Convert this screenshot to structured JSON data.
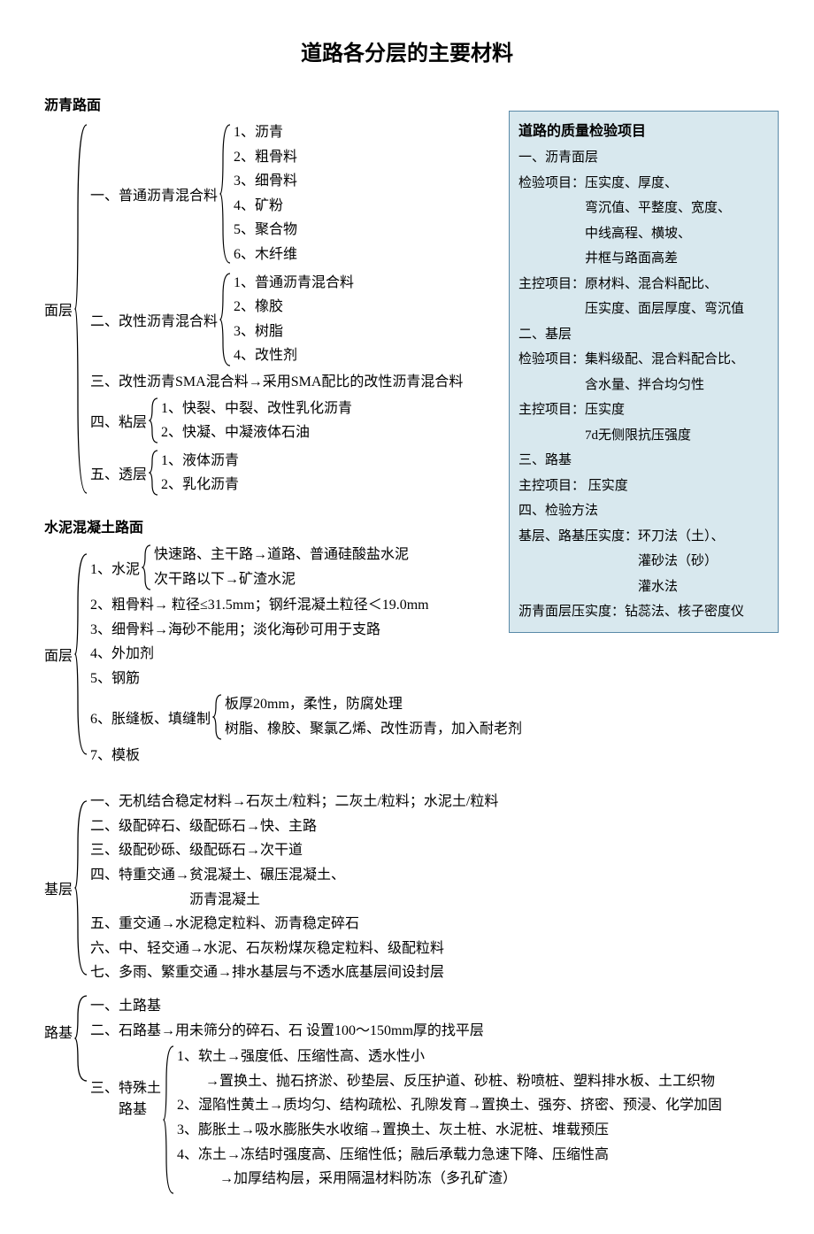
{
  "title": "道路各分层的主要材料",
  "asphalt": {
    "heading": "沥青路面",
    "surface": {
      "label": "面层",
      "sub1": {
        "label": "一、普通沥青混合料",
        "items": [
          "1、沥青",
          "2、粗骨料",
          "3、细骨料",
          "4、矿粉",
          "5、聚合物",
          "6、木纤维"
        ]
      },
      "sub2": {
        "label": "二、改性沥青混合料",
        "items": [
          "1、普通沥青混合料",
          "2、橡胶",
          "3、树脂",
          "4、改性剂"
        ]
      },
      "sub3": "三、改性沥青SMA混合料→采用SMA配比的改性沥青混合料",
      "sub4": {
        "label": "四、粘层",
        "items": [
          "1、快裂、中裂、改性乳化沥青",
          "2、快凝、中凝液体石油"
        ]
      },
      "sub5": {
        "label": "五、透层",
        "items": [
          "1、液体沥青",
          "2、乳化沥青"
        ]
      }
    }
  },
  "cement": {
    "heading": "水泥混凝土路面",
    "surface": {
      "label": "面层",
      "item1": {
        "label": "1、水泥",
        "items": [
          "快速路、主干路→道路、普通硅酸盐水泥",
          "次干路以下→矿渣水泥"
        ]
      },
      "item2": "2、粗骨料→ 粒径≤31.5mm；钢纤混凝土粒径＜19.0mm",
      "item3": "3、细骨料→海砂不能用；淡化海砂可用于支路",
      "item4": "4、外加剂",
      "item5": "5、钢筋",
      "item6": {
        "label": "6、胀缝板、填缝制",
        "items": [
          "板厚20mm，柔性，防腐处理",
          "树脂、橡胶、聚氯乙烯、改性沥青，加入耐老剂"
        ]
      },
      "item7": "7、模板"
    }
  },
  "base": {
    "label": "基层",
    "items": [
      "一、无机结合稳定材料→石灰土/粒料；二灰土/粒料；水泥土/粒料",
      "二、级配碎石、级配砾石→快、主路",
      "三、级配砂砾、级配砾石→次干道",
      "四、特重交通→贫混凝土、碾压混凝土、",
      "　　　　　　　沥青混凝土",
      "五、重交通→水泥稳定粒料、沥青稳定碎石",
      "六、中、轻交通→水泥、石灰粉煤灰稳定粒料、级配粒料",
      "七、多雨、繁重交通→排水基层与不透水底基层间设封层"
    ]
  },
  "subgrade": {
    "label": "路基",
    "item1": "一、土路基",
    "item2": "二、石路基→用未筛分的碎石、石  设置100～150mm厚的找平层",
    "item3": {
      "label": "三、特殊土",
      "label2": "　　路基",
      "items": [
        "1、软土→强度低、压缩性高、透水性小",
        "　　→置换土、抛石挤淤、砂垫层、反压护道、砂桩、粉喷桩、塑料排水板、土工织物",
        "2、湿陷性黄土→质均匀、结构疏松、孔隙发育→置换土、强夯、挤密、预浸、化学加固",
        "3、膨胀土→吸水膨胀失水收缩→置换土、灰土桩、水泥桩、堆载预压",
        "4、冻土→冻结时强度高、压缩性低；融后承载力急速下降、压缩性高",
        "　　　→加厚结构层，采用隔温材料防冻（多孔矿渣）"
      ]
    }
  },
  "inspection": {
    "title": "道路的质量检验项目",
    "lines": [
      "一、沥青面层",
      "检验项目：压实度、厚度、",
      "　　　　　弯沉值、平整度、宽度、",
      "　　　　　中线高程、横坡、",
      "　　　　　井框与路面高差",
      "主控项目：原材料、混合料配比、",
      "　　　　　压实度、面层厚度、弯沉值",
      "二、基层",
      "检验项目：集料级配、混合料配合比、",
      "　　　　　含水量、拌合均匀性",
      "主控项目：压实度",
      "　　　　　7d无侧限抗压强度",
      "三、路基",
      "主控项目： 压实度",
      "四、检验方法",
      "基层、路基压实度：环刀法（土）、",
      "　　　　　　　　　灌砂法（砂）",
      "　　　　　　　　　灌水法",
      "沥青面层压实度：钻蕊法、核子密度仪"
    ]
  },
  "style": {
    "box_bg": "#d8e8ee",
    "box_border": "#5a8aa8"
  }
}
